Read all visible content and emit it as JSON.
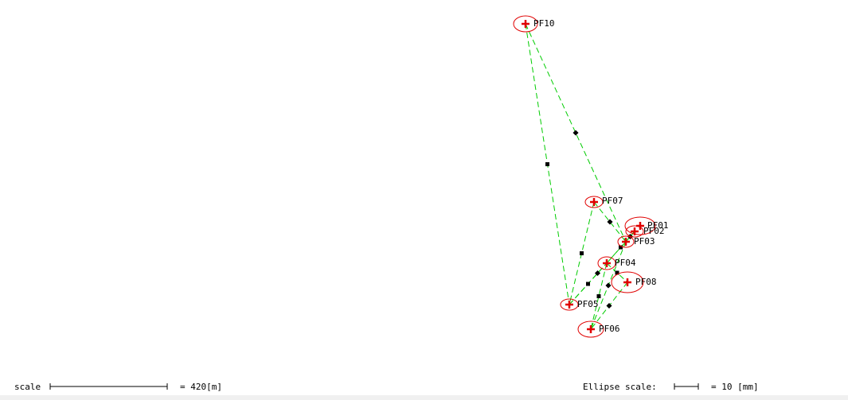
{
  "colors": {
    "background": "#ffffff",
    "network_line": "#00cc00",
    "ellipse": "#e00000",
    "cross": "#e00000",
    "midpoint_marker": "#000000",
    "bottom_strip": "#f0f0f0"
  },
  "points": [
    {
      "id": "PF10",
      "label": "PF10"
    },
    {
      "id": "PF07",
      "label": "PF07"
    },
    {
      "id": "PF01",
      "label": "PF01"
    },
    {
      "id": "PF02",
      "label": "PF02"
    },
    {
      "id": "PF03",
      "label": "PF03"
    },
    {
      "id": "PF04",
      "label": "PF04"
    },
    {
      "id": "PF08",
      "label": "PF08"
    },
    {
      "id": "PF05",
      "label": "PF05"
    },
    {
      "id": "PF06",
      "label": "PF06"
    }
  ],
  "observations": [
    [
      "PF10",
      "PF05"
    ],
    [
      "PF10",
      "PF03"
    ],
    [
      "PF07",
      "PF05"
    ],
    [
      "PF07",
      "PF03"
    ],
    [
      "PF05",
      "PF04"
    ],
    [
      "PF05",
      "PF03"
    ],
    [
      "PF04",
      "PF06"
    ],
    [
      "PF03",
      "PF06"
    ],
    [
      "PF02",
      "PF04"
    ],
    [
      "PF08",
      "PF06"
    ],
    [
      "PF04",
      "PF08"
    ],
    [
      "PF02",
      "PF03"
    ]
  ],
  "scale_bar": {
    "label": "scale",
    "value_text": "= 420[m]"
  },
  "ellipse_scale_bar": {
    "label": "Ellipse scale:",
    "value_text": "= 10 [mm]"
  }
}
